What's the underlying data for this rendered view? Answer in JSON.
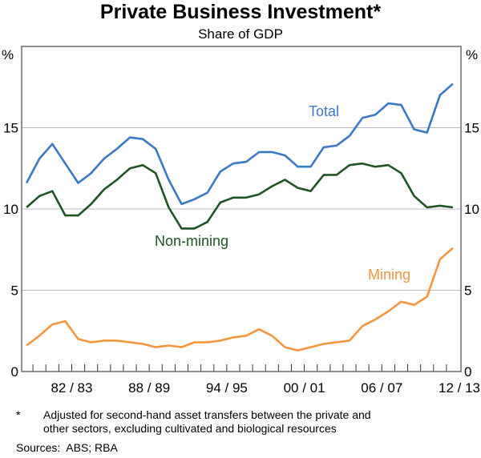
{
  "chart_data": {
    "type": "line",
    "title": "Private Business Investment*",
    "subtitle": "Share of GDP",
    "ylabel_left": "%",
    "ylabel_right": "%",
    "ylim": [
      0,
      20
    ],
    "yticks": [
      0,
      5,
      10,
      15
    ],
    "grid": true,
    "x": [
      "79/80",
      "80/81",
      "81/82",
      "82/83",
      "83/84",
      "84/85",
      "85/86",
      "86/87",
      "87/88",
      "88/89",
      "89/90",
      "90/91",
      "91/92",
      "92/93",
      "93/94",
      "94/95",
      "95/96",
      "96/97",
      "97/98",
      "98/99",
      "99/00",
      "00/01",
      "01/02",
      "02/03",
      "03/04",
      "04/05",
      "05/06",
      "06/07",
      "07/08",
      "08/09",
      "09/10",
      "10/11",
      "11/12",
      "12/13"
    ],
    "xtick_labels": [
      "82/83",
      "88/89",
      "94/95",
      "00/01",
      "06/07",
      "12/13"
    ],
    "series": [
      {
        "name": "Total",
        "color": "#3a78c8",
        "values": [
          11.6,
          13.1,
          14.0,
          12.8,
          11.6,
          12.2,
          13.1,
          13.7,
          14.4,
          14.3,
          13.7,
          11.8,
          10.3,
          10.6,
          11.0,
          12.3,
          12.8,
          12.9,
          13.5,
          13.5,
          13.3,
          12.6,
          12.6,
          13.8,
          13.9,
          14.5,
          15.6,
          15.8,
          16.5,
          16.4,
          14.9,
          14.7,
          17.0,
          17.7
        ]
      },
      {
        "name": "Non-mining",
        "color": "#1d5523",
        "values": [
          10.1,
          10.8,
          11.1,
          9.6,
          9.6,
          10.3,
          11.2,
          11.8,
          12.5,
          12.7,
          12.2,
          10.1,
          8.8,
          8.8,
          9.2,
          10.4,
          10.7,
          10.7,
          10.9,
          11.4,
          11.8,
          11.3,
          11.1,
          12.1,
          12.1,
          12.7,
          12.8,
          12.6,
          12.7,
          12.2,
          10.8,
          10.1,
          10.2,
          10.1
        ]
      },
      {
        "name": "Mining",
        "color": "#f7953d",
        "values": [
          1.6,
          2.2,
          2.9,
          3.1,
          2.0,
          1.8,
          1.9,
          1.9,
          1.8,
          1.7,
          1.5,
          1.6,
          1.5,
          1.8,
          1.8,
          1.9,
          2.1,
          2.2,
          2.6,
          2.2,
          1.5,
          1.3,
          1.5,
          1.7,
          1.8,
          1.9,
          2.8,
          3.2,
          3.7,
          4.3,
          4.1,
          4.6,
          6.9,
          7.6
        ]
      }
    ],
    "series_labels": [
      "Total",
      "Non-mining",
      "Mining"
    ]
  },
  "footnote": {
    "marker": "*",
    "line1": "Adjusted for second-hand asset transfers between the private and",
    "line2": "other sectors, excluding cultivated and biological resources"
  },
  "sources": {
    "label": "Sources:",
    "value": "ABS; RBA"
  }
}
